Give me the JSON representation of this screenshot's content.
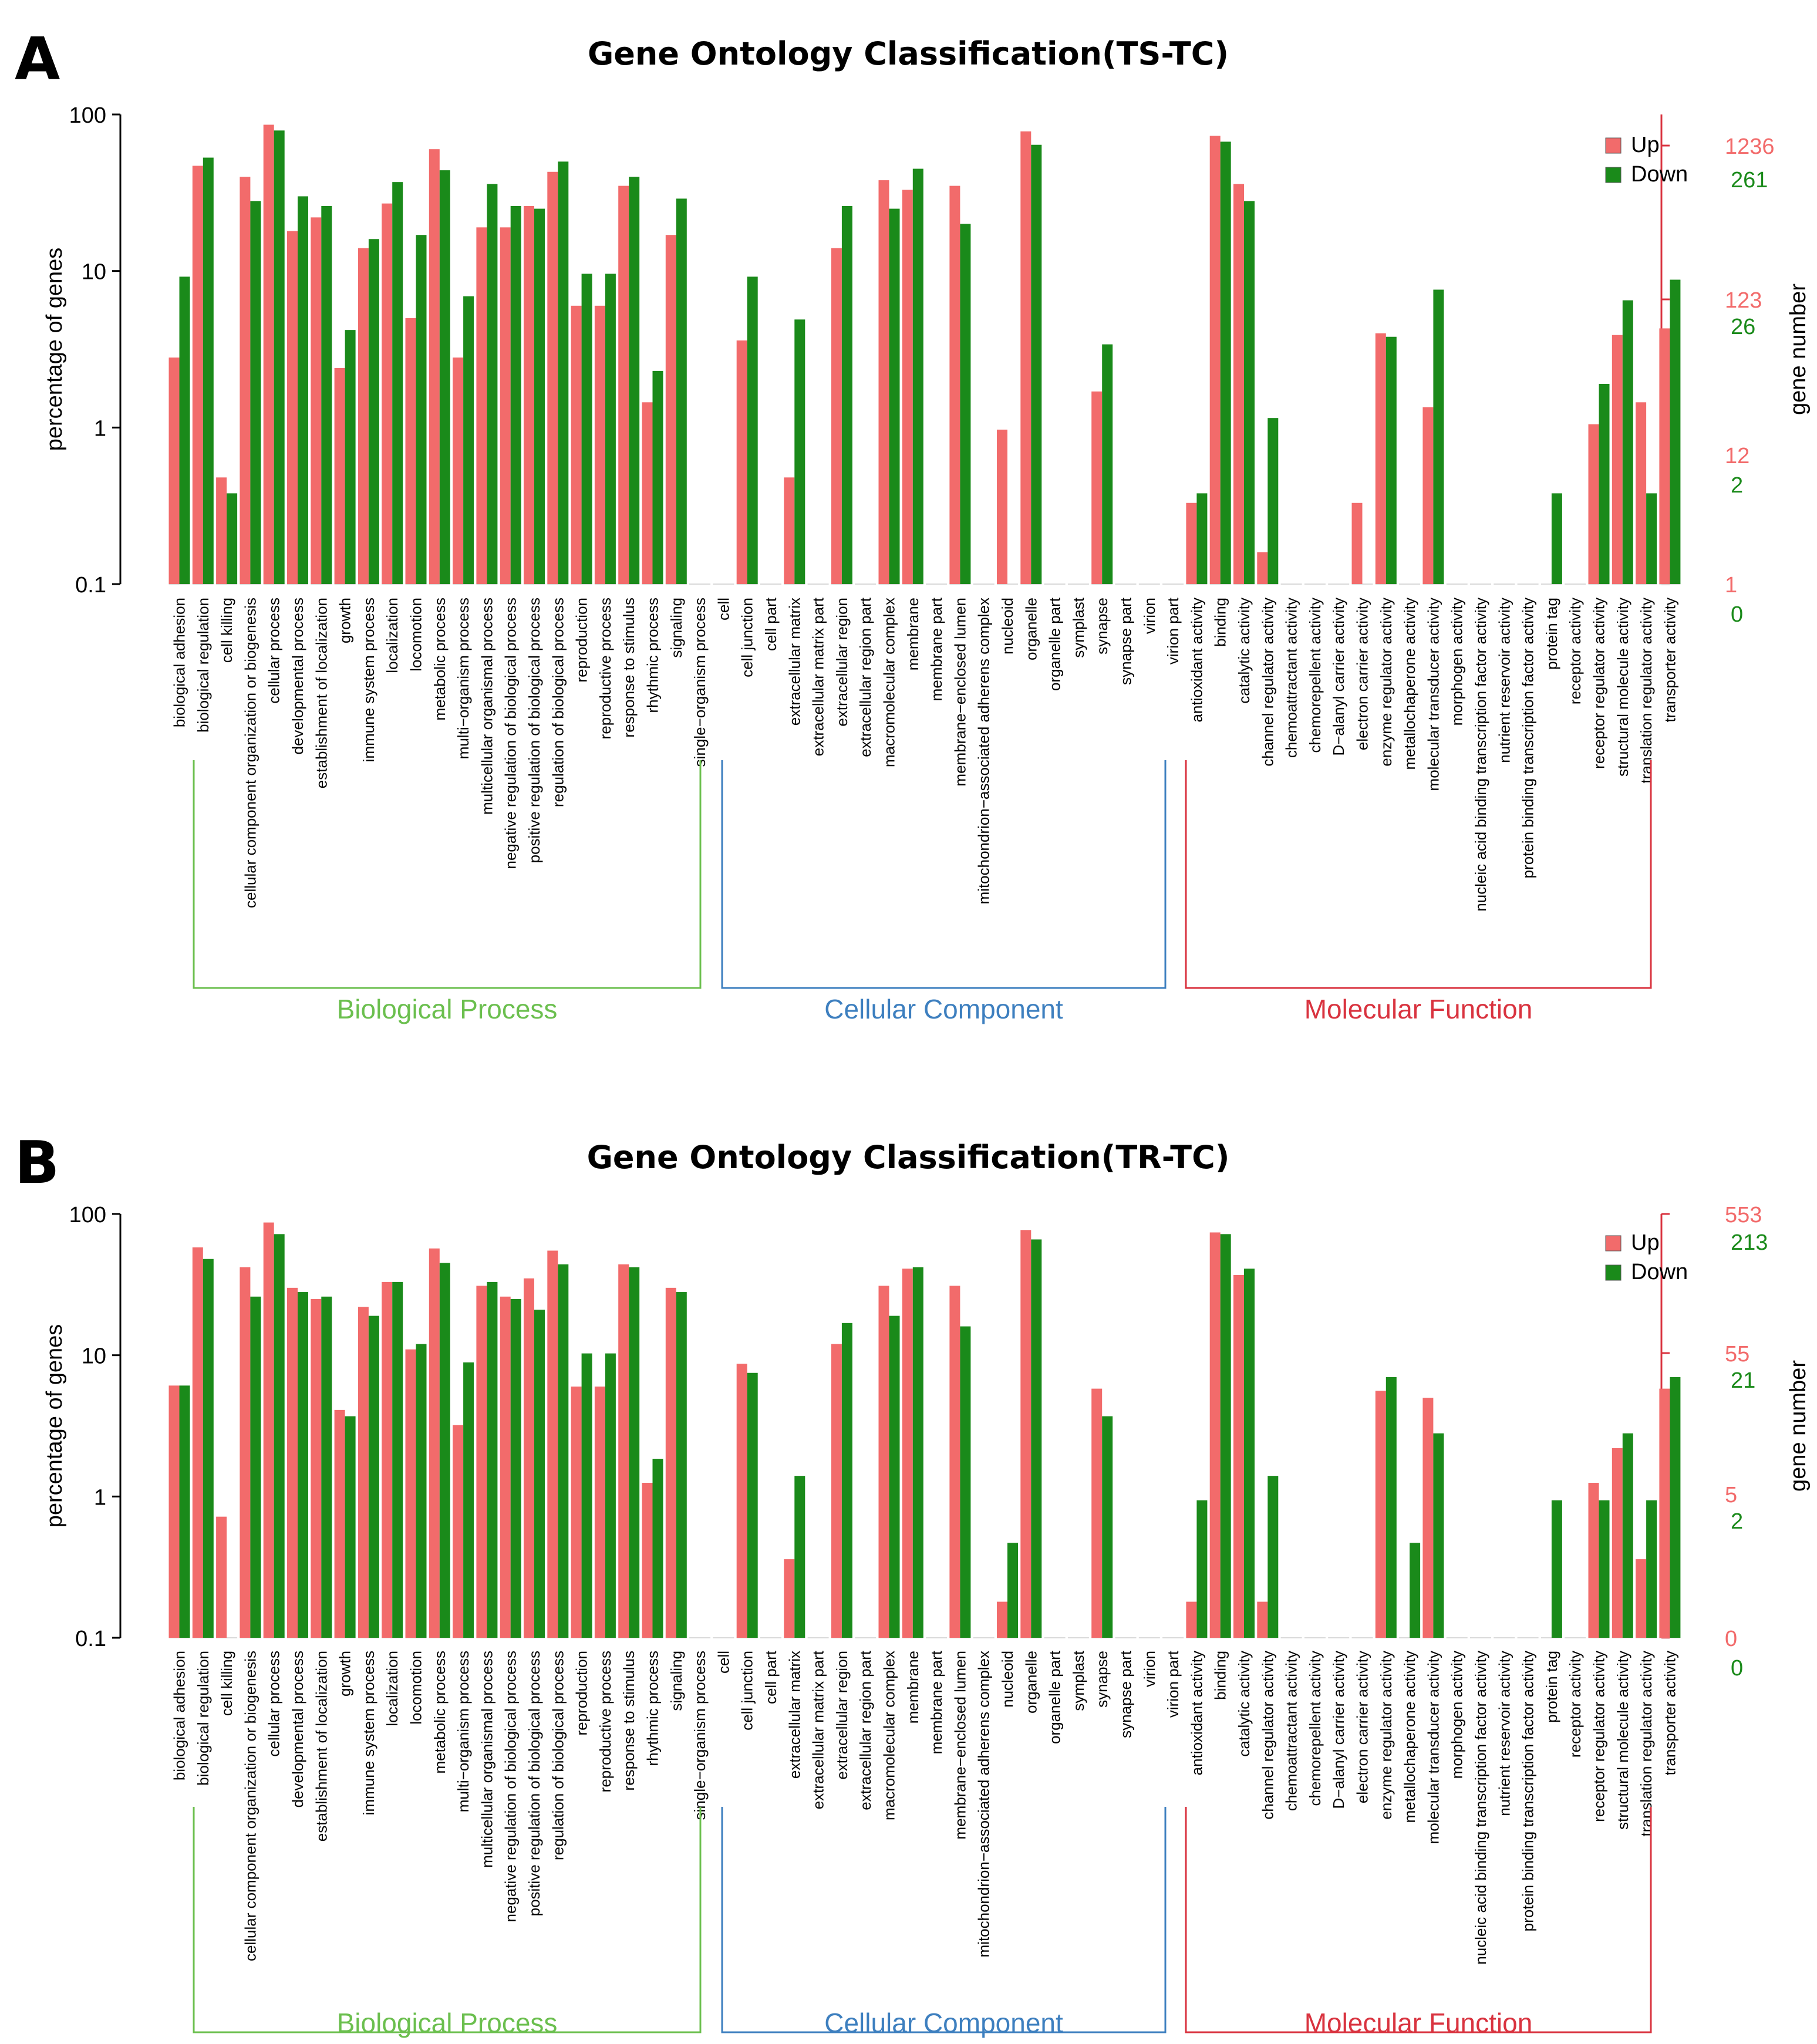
{
  "chart_data": [
    {
      "type": "bar",
      "panel_label": "A",
      "title": "Gene Ontology Classification(TS-TC)",
      "ylabel": "percentage of genes",
      "y2label": "gene number",
      "yscale": "log",
      "ylim": [
        0.1,
        100
      ],
      "yticks": [
        "0.1",
        "1",
        "10",
        "100"
      ],
      "right_ticks_up": [
        "1",
        "12",
        "123",
        "1236"
      ],
      "right_ticks_down": [
        "0",
        "2",
        "26",
        "261"
      ],
      "colors": {
        "up": "#f26b6b",
        "down": "#1a8a1a",
        "bp": "#6bbf4e",
        "cc": "#3d7fbf",
        "mf": "#d9333f"
      },
      "legend": [
        "Up",
        "Down"
      ],
      "groups": [
        {
          "name": "Biological Process",
          "start": 0,
          "end": 21
        },
        {
          "name": "Cellular Component",
          "start": 22,
          "end": 40
        },
        {
          "name": "Molecular Function",
          "start": 41,
          "end": 61
        }
      ],
      "categories": [
        "biological adhesion",
        "biological regulation",
        "cell killing",
        "cellular component organization or biogenesis",
        "cellular process",
        "developmental process",
        "establishment of localization",
        "growth",
        "immune system process",
        "localization",
        "locomotion",
        "metabolic process",
        "multi−organism process",
        "multicellular organismal process",
        "negative regulation of biological process",
        "positive regulation of biological process",
        "regulation of biological process",
        "reproduction",
        "reproductive process",
        "response to stimulus",
        "rhythmic process",
        "signaling",
        "single−organism process",
        "cell",
        "cell junction",
        "cell part",
        "extracellular matrix",
        "extracellular matrix part",
        "extracellular region",
        "extracellular region part",
        "macromolecular complex",
        "membrane",
        "membrane part",
        "membrane−enclosed lumen",
        "mitochondrion−associated adherens complex",
        "nucleoid",
        "organelle",
        "organelle part",
        "symplast",
        "synapse",
        "synapse part",
        "virion",
        "virion part",
        "antioxidant activity",
        "binding",
        "catalytic activity",
        "channel regulator activity",
        "chemoattractant activity",
        "chemorepellent activity",
        "D−alanyl carrier activity",
        "electron carrier activity",
        "enzyme regulator activity",
        "metallochaperone activity",
        "molecular transducer activity",
        "morphogen activity",
        "nucleic acid binding transcription factor activity",
        "nutrient reservoir activity",
        "protein binding transcription factor activity",
        "protein tag",
        "receptor activity",
        "receptor regulator activity",
        "structural molecule activity",
        "translation regulator activity",
        "transporter activity"
      ],
      "series": [
        {
          "name": "Up",
          "values": [
            2.8,
            47,
            0.48,
            40,
            86,
            18,
            22,
            2.4,
            14,
            27,
            5,
            60,
            2.8,
            19,
            19,
            26,
            43,
            6,
            6,
            35,
            1.45,
            17,
            0,
            0,
            3.6,
            0,
            0.48,
            0,
            14,
            0,
            38,
            33,
            0,
            35,
            0,
            0.97,
            78,
            0,
            0,
            1.7,
            0,
            0,
            0,
            0.33,
            73,
            36,
            0.16,
            0,
            0,
            0,
            0.33,
            4,
            0,
            1.35,
            0,
            0,
            0,
            0,
            0,
            0,
            1.05,
            3.9,
            1.45,
            4.3
          ]
        },
        {
          "name": "Down",
          "values": [
            9.2,
            53,
            0.38,
            28,
            79,
            30,
            26,
            4.2,
            16,
            37,
            17,
            44,
            6.9,
            36,
            26,
            25,
            50,
            9.6,
            9.6,
            40,
            2.3,
            29,
            0,
            0,
            9.2,
            0,
            4.9,
            0,
            26,
            0,
            25,
            45,
            0,
            20,
            0,
            0,
            64,
            0,
            0,
            3.4,
            0,
            0,
            0,
            0.38,
            67,
            28,
            1.15,
            0,
            0,
            0,
            0,
            3.8,
            0,
            7.6,
            0,
            0,
            0,
            0,
            0.38,
            0,
            1.9,
            6.5,
            0.38,
            8.8
          ]
        }
      ]
    },
    {
      "type": "bar",
      "panel_label": "B",
      "title": "Gene Ontology Classification(TR-TC)",
      "ylabel": "percentage of genes",
      "y2label": "gene number",
      "yscale": "log",
      "ylim": [
        0.1,
        100
      ],
      "yticks": [
        "0.1",
        "1",
        "10",
        "100"
      ],
      "right_ticks_up": [
        "0",
        "5",
        "55",
        "553"
      ],
      "right_ticks_down": [
        "0",
        "2",
        "21",
        "213"
      ],
      "colors": {
        "up": "#f26b6b",
        "down": "#1a8a1a",
        "bp": "#6bbf4e",
        "cc": "#3d7fbf",
        "mf": "#d9333f"
      },
      "legend": [
        "Up",
        "Down"
      ],
      "groups": [
        {
          "name": "Biological Process",
          "start": 0,
          "end": 21
        },
        {
          "name": "Cellular Component",
          "start": 22,
          "end": 40
        },
        {
          "name": "Molecular Function",
          "start": 41,
          "end": 61
        }
      ],
      "categories": [
        "biological adhesion",
        "biological regulation",
        "cell killing",
        "cellular component organization or biogenesis",
        "cellular process",
        "developmental process",
        "establishment of localization",
        "growth",
        "immune system process",
        "localization",
        "locomotion",
        "metabolic process",
        "multi−organism process",
        "multicellular organismal process",
        "negative regulation of biological process",
        "positive regulation of biological process",
        "regulation of biological process",
        "reproduction",
        "reproductive process",
        "response to stimulus",
        "rhythmic process",
        "signaling",
        "single−organism process",
        "cell",
        "cell junction",
        "cell part",
        "extracellular matrix",
        "extracellular matrix part",
        "extracellular region",
        "extracellular region part",
        "macromolecular complex",
        "membrane",
        "membrane part",
        "membrane−enclosed lumen",
        "mitochondrion−associated adherens complex",
        "nucleoid",
        "organelle",
        "organelle part",
        "symplast",
        "synapse",
        "synapse part",
        "virion",
        "virion part",
        "antioxidant activity",
        "binding",
        "catalytic activity",
        "channel regulator activity",
        "chemoattractant activity",
        "chemorepellent activity",
        "D−alanyl carrier activity",
        "electron carrier activity",
        "enzyme regulator activity",
        "metallochaperone activity",
        "molecular transducer activity",
        "morphogen activity",
        "nucleic acid binding transcription factor activity",
        "nutrient reservoir activity",
        "protein binding transcription factor activity",
        "protein tag",
        "receptor activity",
        "receptor regulator activity",
        "structural molecule activity",
        "translation regulator activity",
        "transporter activity"
      ],
      "series": [
        {
          "name": "Up",
          "values": [
            6.1,
            58,
            0.72,
            42,
            87,
            30,
            25,
            4.1,
            22,
            33,
            11,
            57,
            3.2,
            31,
            26,
            35,
            55,
            6,
            6,
            44,
            1.25,
            30,
            0,
            0,
            8.7,
            0,
            0.36,
            0,
            12,
            0,
            31,
            41,
            0,
            31,
            0,
            0.18,
            77,
            0,
            0,
            5.8,
            0,
            0,
            0,
            0.18,
            74,
            37,
            0.18,
            0,
            0,
            0,
            0,
            5.6,
            0,
            5,
            0,
            0,
            0,
            0,
            0,
            0,
            1.25,
            2.2,
            0.36,
            5.8
          ]
        },
        {
          "name": "Down",
          "values": [
            6.1,
            48,
            0,
            26,
            72,
            28,
            26,
            3.7,
            19,
            33,
            12,
            45,
            8.9,
            33,
            25,
            21,
            44,
            10.3,
            10.3,
            42,
            1.85,
            28,
            0,
            0,
            7.5,
            0,
            1.4,
            0,
            16.9,
            0,
            19,
            42,
            0,
            16,
            0,
            0.47,
            66,
            0,
            0,
            3.7,
            0,
            0,
            0,
            0.94,
            72,
            41,
            1.4,
            0,
            0,
            0,
            0,
            7,
            0.47,
            2.8,
            0,
            0,
            0,
            0,
            0.94,
            0,
            0.94,
            2.8,
            0.94,
            7
          ]
        }
      ]
    }
  ]
}
